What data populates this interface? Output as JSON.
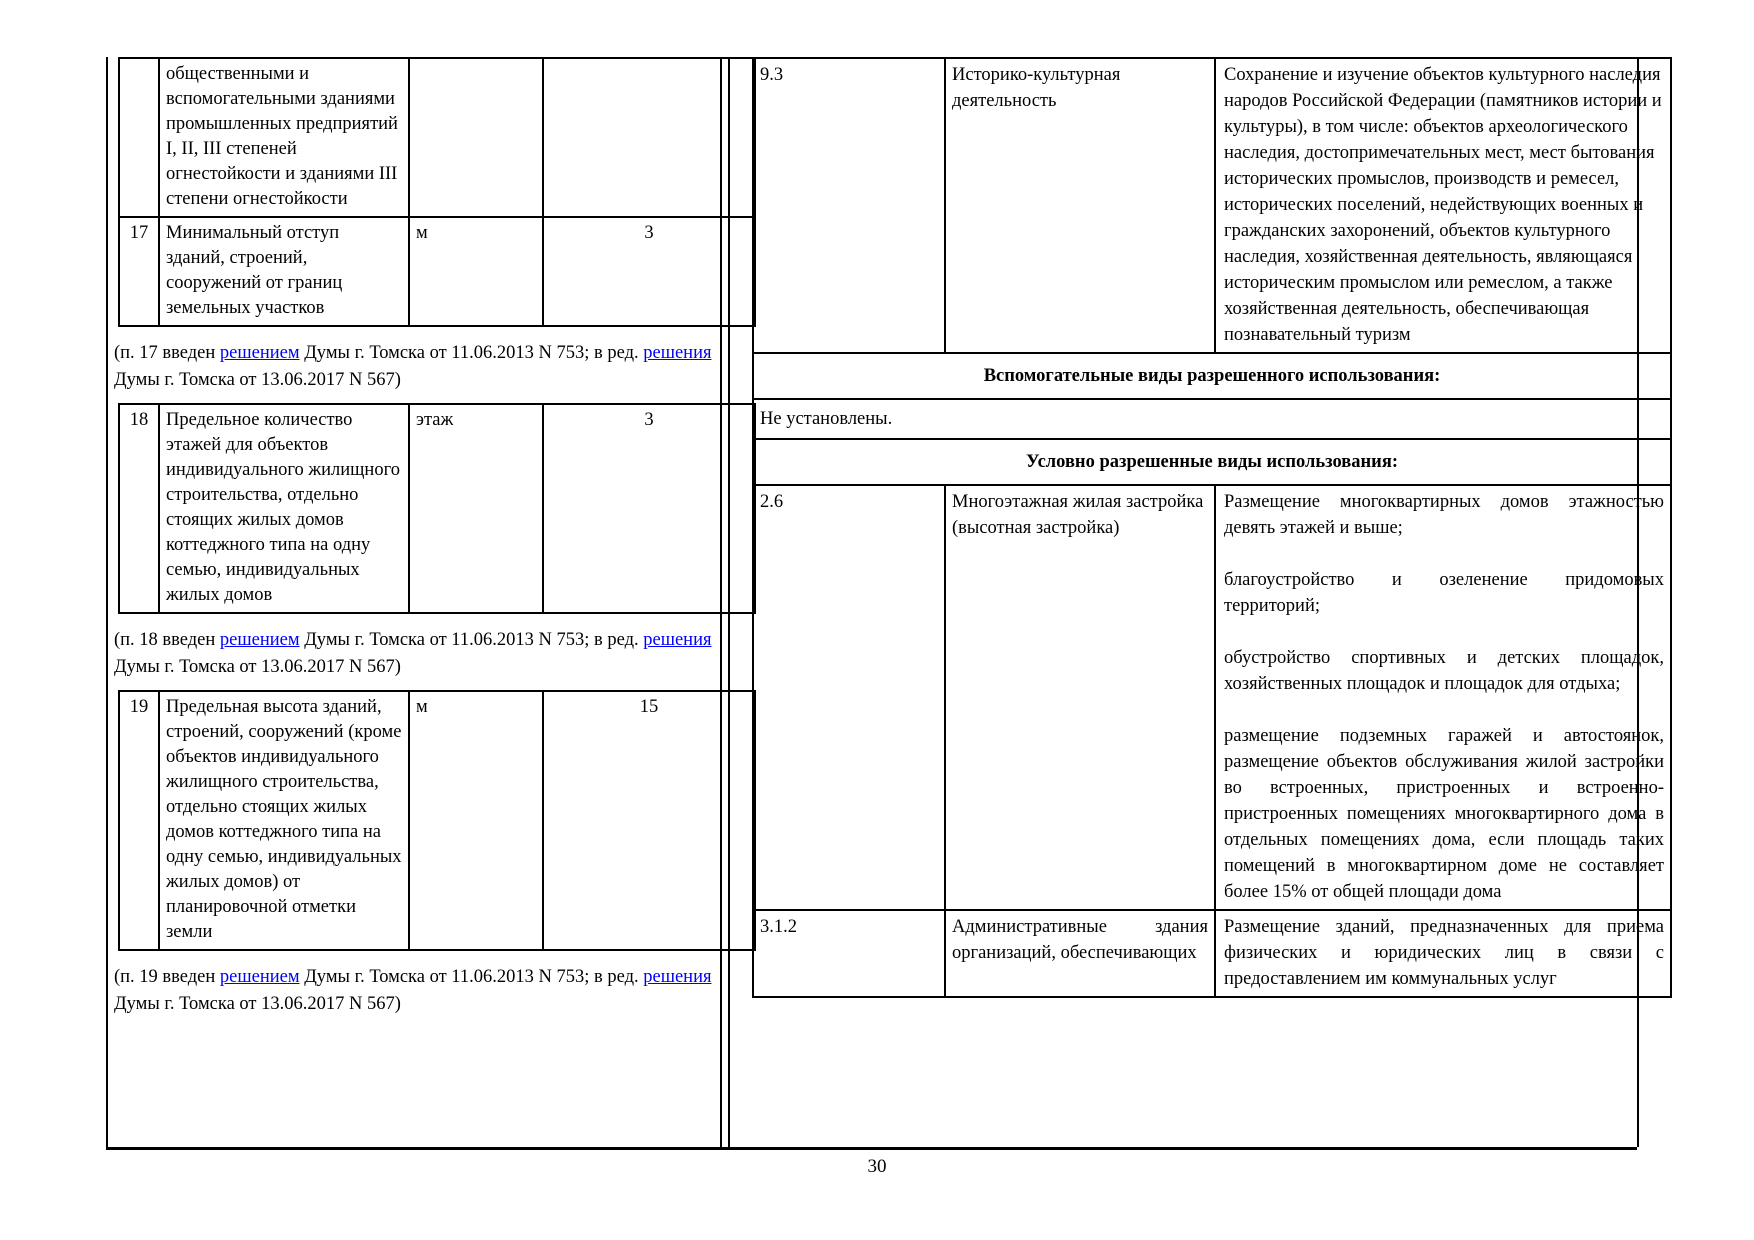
{
  "page_number": "30",
  "colors": {
    "link_blue": "#0000ff",
    "text": "#000000",
    "border": "#000000",
    "page_bg": "#ffffff"
  },
  "left_column": {
    "continued_row": {
      "num": "",
      "name": "общественными и вспомогательными зданиями промышленных предприятий I, II, III степеней огнестойкости и зданиями III степени огнестойкости",
      "unit": "",
      "value": ""
    },
    "row_17": {
      "num": "17",
      "name": "Минимальный отступ зданий, строений, сооружений от границ земельных участков",
      "unit": "м",
      "value": "3"
    },
    "note_17": {
      "before": "(п. 17 введен ",
      "link1": "решением",
      "between": " Думы г. Томска от 11.06.2013 N 753; в ред. ",
      "link2": "решения",
      "after": " Думы г. Томска от 13.06.2017 N 567)"
    },
    "row_18": {
      "num": "18",
      "name": "Предельное количество этажей для объектов индивидуального жилищного строительства, отдельно стоящих жилых домов коттеджного типа на одну семью, индивидуальных жилых домов",
      "unit": "этаж",
      "value": "3"
    },
    "note_18": {
      "before": "(п. 18 введен ",
      "link1": "решением",
      "between": " Думы г. Томска от 11.06.2013 N 753; в ред. ",
      "link2": "решения",
      "after": " Думы г. Томска от 13.06.2017 N 567)"
    },
    "row_19": {
      "num": "19",
      "name": "Предельная высота зданий, строений, сооружений (кроме объектов индивидуального жилищного строительства, отдельно стоящих жилых домов коттеджного типа на одну семью, индивидуальных жилых домов) от планировочной отметки земли",
      "unit": "м",
      "value": "15"
    },
    "note_19": {
      "before": "(п. 19 введен ",
      "link1": "решением",
      "between": " Думы г. Томска от 11.06.2013 N 753; в ред. ",
      "link2": "решения",
      "after": " Думы г. Томска от 13.06.2017 N 567)"
    }
  },
  "right_column": {
    "row_9_3": {
      "code": "9.3",
      "name": "Историко-культурная деятельность",
      "description": "Сохранение и изучение объектов культурного наследия народов Российской Федерации (памятников истории и культуры), в том числе: объектов археологического наследия, достопримечательных мест, мест бытования исторических промыслов, производств и ремесел, исторических поселений, недействующих военных и гражданских захоронений, объектов культурного наследия, хозяйственная деятельность, являющаяся историческим промыслом или ремеслом, а также хозяйственная деятельность, обеспечивающая познавательный туризм"
    },
    "aux_header": "Вспомогательные виды разрешенного использования:",
    "aux_value": "Не установлены.",
    "cond_header": "Условно разрешенные виды использования:",
    "row_2_6": {
      "code": "2.6",
      "name": "Многоэтажная жилая застройка (высотная застройка)",
      "paragraphs": [
        "Размещение многоквартирных домов этажностью девять этажей и выше;",
        "благоустройство и озеленение придомовых территорий;",
        "обустройство спортивных и детских площадок, хозяйственных площадок и площадок для отдыха;",
        "размещение подземных гаражей и автостоянок, размещение объектов обслуживания жилой застройки во встроенных, пристроенных и встроенно-пристроенных помещениях многоквартирного дома в отдельных помещениях дома, если площадь таких помещений в многоквартирном доме не составляет более 15% от общей площади дома"
      ]
    },
    "row_3_1_2": {
      "code": "3.1.2",
      "name": "Административные здания организаций, обеспечивающих",
      "description": "Размещение зданий, предназначенных для приема физических и юридических лиц в связи с предоставлением им коммунальных услуг"
    }
  }
}
